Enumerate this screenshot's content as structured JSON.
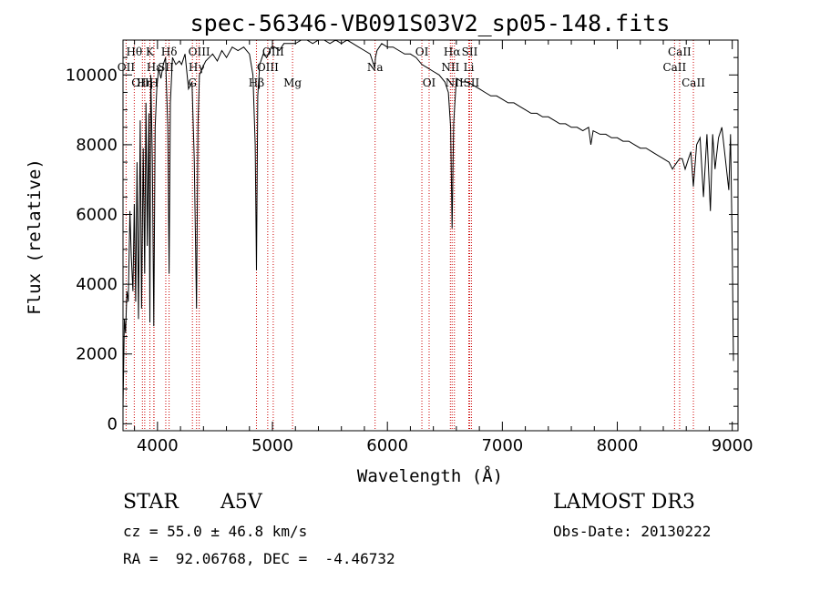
{
  "chart_data": {
    "type": "line",
    "title": "spec-56346-VB091S03V2_sp05-148.fits",
    "xlabel": "Wavelength (Å)",
    "ylabel": "Flux (relative)",
    "xlim": [
      3700,
      9050
    ],
    "ylim": [
      -200,
      11000
    ],
    "xticks": [
      4000,
      5000,
      6000,
      7000,
      8000,
      9000
    ],
    "yticks": [
      0,
      2000,
      4000,
      6000,
      8000,
      10000
    ],
    "series": [
      {
        "name": "spectrum",
        "x": [
          3700,
          3712,
          3722,
          3734,
          3746,
          3760,
          3772,
          3786,
          3798,
          3810,
          3822,
          3835,
          3850,
          3862,
          3876,
          3889,
          3900,
          3912,
          3925,
          3934,
          3942,
          3955,
          3968,
          3980,
          3994,
          4010,
          4030,
          4050,
          4070,
          4090,
          4101,
          4112,
          4130,
          4160,
          4190,
          4210,
          4240,
          4270,
          4300,
          4320,
          4340,
          4352,
          4365,
          4390,
          4420,
          4450,
          4480,
          4520,
          4560,
          4600,
          4650,
          4700,
          4750,
          4800,
          4830,
          4850,
          4861,
          4872,
          4890,
          4920,
          4950,
          4990,
          5020,
          5060,
          5100,
          5150,
          5200,
          5250,
          5300,
          5350,
          5400,
          5450,
          5500,
          5550,
          5600,
          5650,
          5700,
          5750,
          5800,
          5850,
          5890,
          5896,
          5910,
          5950,
          6000,
          6050,
          6100,
          6150,
          6200,
          6250,
          6300,
          6350,
          6400,
          6450,
          6500,
          6530,
          6550,
          6563,
          6576,
          6600,
          6650,
          6700,
          6750,
          6800,
          6850,
          6900,
          6950,
          7000,
          7050,
          7100,
          7150,
          7200,
          7250,
          7300,
          7350,
          7400,
          7450,
          7500,
          7550,
          7600,
          7650,
          7700,
          7750,
          7770,
          7790,
          7850,
          7900,
          7950,
          8000,
          8050,
          8100,
          8150,
          8200,
          8250,
          8300,
          8350,
          8400,
          8450,
          8480,
          8498,
          8520,
          8542,
          8565,
          8590,
          8620,
          8640,
          8662,
          8690,
          8720,
          8750,
          8780,
          8810,
          8830,
          8850,
          8880,
          8910,
          8940,
          8970,
          8985,
          9000,
          9010
        ],
        "y": [
          400,
          3000,
          2600,
          3800,
          3500,
          6100,
          4800,
          3800,
          6300,
          3500,
          7500,
          3000,
          8700,
          3300,
          7900,
          4300,
          9200,
          5100,
          8900,
          2900,
          10000,
          7600,
          2800,
          8500,
          9600,
          10200,
          9900,
          10300,
          10500,
          8500,
          4300,
          9200,
          10500,
          10300,
          10400,
          10300,
          10600,
          9600,
          9800,
          7600,
          3300,
          8600,
          10000,
          10200,
          10400,
          10500,
          10600,
          10400,
          10700,
          10500,
          10800,
          10700,
          10800,
          10600,
          10000,
          8000,
          4400,
          9400,
          10300,
          10600,
          10500,
          10800,
          10800,
          10700,
          10900,
          10900,
          10900,
          11000,
          11000,
          10900,
          11000,
          11000,
          10900,
          11000,
          10900,
          11000,
          10900,
          10800,
          10700,
          10600,
          10200,
          10500,
          10700,
          10900,
          10800,
          10800,
          10700,
          10600,
          10600,
          10500,
          10300,
          10200,
          10100,
          10000,
          9800,
          9500,
          8500,
          5600,
          8600,
          9900,
          9800,
          9800,
          9700,
          9600,
          9500,
          9400,
          9400,
          9300,
          9200,
          9200,
          9100,
          9000,
          8900,
          8900,
          8800,
          8800,
          8700,
          8600,
          8600,
          8500,
          8500,
          8400,
          8500,
          8000,
          8400,
          8300,
          8300,
          8200,
          8200,
          8100,
          8100,
          8000,
          7900,
          7900,
          7800,
          7700,
          7600,
          7500,
          7300,
          7400,
          7500,
          7600,
          7600,
          7300,
          7600,
          7800,
          6800,
          8000,
          8200,
          6500,
          8300,
          6100,
          8300,
          7300,
          8200,
          8500,
          7600,
          6700,
          8300,
          5000,
          1800
        ]
      }
    ],
    "lines": [
      {
        "name": "Hθ",
        "x": 3798,
        "row": 1
      },
      {
        "name": "OII",
        "x": 3727,
        "row": 2
      },
      {
        "name": "OIII",
        "x": 3869,
        "row": 3
      },
      {
        "name": "K",
        "x": 3934,
        "row": 1
      },
      {
        "name": "H",
        "x": 3968,
        "row": 3
      },
      {
        "name": "Hε",
        "x": 3970,
        "row": 2
      },
      {
        "name": "Hη",
        "x": 3889,
        "row": 3
      },
      {
        "name": "SII",
        "x": 4072,
        "row": 2
      },
      {
        "name": "Hδ",
        "x": 4101,
        "row": 1
      },
      {
        "name": "OIII",
        "x": 4363,
        "row": 1
      },
      {
        "name": "Hγ",
        "x": 4340,
        "row": 2
      },
      {
        "name": "G",
        "x": 4304,
        "row": 3
      },
      {
        "name": "Hβ",
        "x": 4861,
        "row": 3
      },
      {
        "name": "OIII",
        "x": 4959,
        "row": 2
      },
      {
        "name": "OIII",
        "x": 5007,
        "row": 1
      },
      {
        "name": "Mg",
        "x": 5175,
        "row": 3
      },
      {
        "name": "Na",
        "x": 5893,
        "row": 2
      },
      {
        "name": "OI",
        "x": 6300,
        "row": 1
      },
      {
        "name": "OI",
        "x": 6363,
        "row": 3
      },
      {
        "name": "Hα",
        "x": 6563,
        "row": 1
      },
      {
        "name": "NII",
        "x": 6548,
        "row": 2
      },
      {
        "name": "NII",
        "x": 6583,
        "row": 3
      },
      {
        "name": "SII",
        "x": 6716,
        "row": 1
      },
      {
        "name": "Li",
        "x": 6708,
        "row": 2
      },
      {
        "name": "SII",
        "x": 6731,
        "row": 3
      },
      {
        "name": "CaII",
        "x": 8542,
        "row": 1
      },
      {
        "name": "CaII",
        "x": 8498,
        "row": 2
      },
      {
        "name": "CaII",
        "x": 8662,
        "row": 3
      }
    ],
    "colors": {
      "spectrum": "#000000",
      "lines": "#cc0000"
    }
  },
  "info": {
    "class_label": "STAR",
    "subclass": "A5V",
    "survey": "LAMOST DR3",
    "cz": "cz = 55.0 ± 46.8 km/s",
    "obs_date": "Obs-Date: 20130222",
    "coords": "RA =  92.06768, DEC =  -4.46732"
  }
}
